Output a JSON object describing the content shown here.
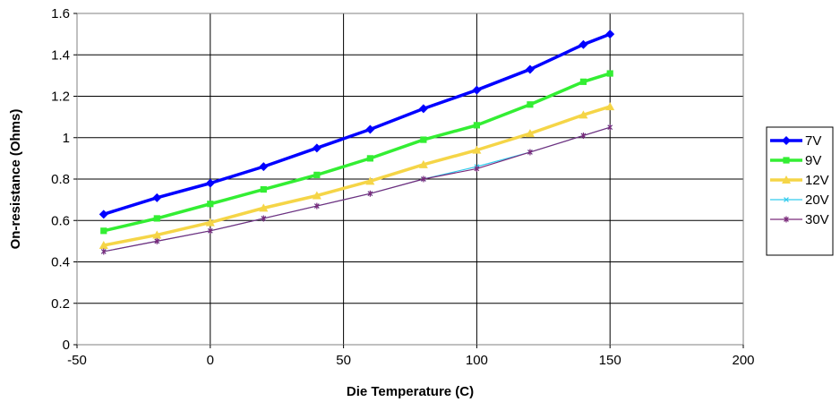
{
  "chart_data": {
    "type": "line",
    "title": "",
    "xlabel": "Die Temperature (C)",
    "ylabel": "On-resistance (Ohms)",
    "xlim": [
      -50,
      200
    ],
    "ylim": [
      0,
      1.6
    ],
    "xticks": [
      "-50",
      "0",
      "50",
      "100",
      "150",
      "200"
    ],
    "yticks": [
      "0",
      "0.2",
      "0.4",
      "0.6",
      "0.8",
      "1",
      "1.2",
      "1.4",
      "1.6"
    ],
    "grid": true,
    "legend_position": "right",
    "x": [
      -40,
      -20,
      0,
      20,
      40,
      60,
      80,
      100,
      120,
      140,
      150
    ],
    "series": [
      {
        "name": "7V",
        "color": "#0000ff",
        "marker": "diamond",
        "values": [
          0.63,
          0.71,
          0.78,
          0.86,
          0.95,
          1.04,
          1.14,
          1.23,
          1.33,
          1.45,
          1.5
        ]
      },
      {
        "name": "9V",
        "color": "#33ee33",
        "marker": "square",
        "values": [
          0.55,
          0.61,
          0.68,
          0.75,
          0.82,
          0.9,
          0.99,
          1.06,
          1.16,
          1.27,
          1.31
        ]
      },
      {
        "name": "12V",
        "color": "#f5d547",
        "marker": "triangle",
        "values": [
          0.48,
          0.53,
          0.59,
          0.66,
          0.72,
          0.79,
          0.87,
          0.94,
          1.02,
          1.11,
          1.15
        ]
      },
      {
        "name": "20V",
        "color": "#33ccee",
        "marker": "x",
        "values": [
          0.45,
          0.5,
          0.55,
          0.61,
          0.67,
          0.73,
          0.8,
          0.86,
          0.93,
          1.01,
          1.05
        ]
      },
      {
        "name": "30V",
        "color": "#7a2a7a",
        "marker": "star",
        "values": [
          0.45,
          0.5,
          0.55,
          0.61,
          0.67,
          0.73,
          0.8,
          0.85,
          0.93,
          1.01,
          1.05
        ]
      }
    ]
  }
}
